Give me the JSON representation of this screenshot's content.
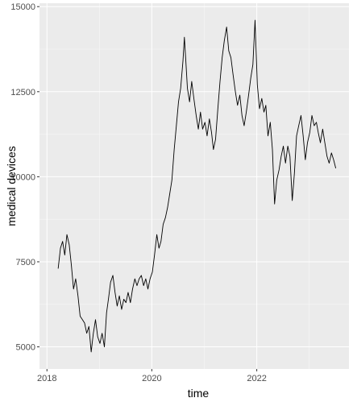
{
  "colors": {
    "panel_background": "#ebebeb",
    "grid_major": "#ffffff",
    "line": "#000000",
    "tick_text": "#4d4d4d",
    "tick_mark": "#333333"
  },
  "chart_data": {
    "type": "line",
    "title": "",
    "xlabel": "time",
    "ylabel": "medical devices",
    "xlim": [
      "2017-11-10",
      "2023-10-05"
    ],
    "ylim": [
      4350,
      15100
    ],
    "x_ticks": [
      {
        "value": "2018-01-01",
        "label": "2018"
      },
      {
        "value": "2020-01-01",
        "label": "2020"
      },
      {
        "value": "2022-01-01",
        "label": "2022"
      }
    ],
    "y_ticks": [
      {
        "value": 5000,
        "label": "5000"
      },
      {
        "value": 7500,
        "label": "7500"
      },
      {
        "value": 10000,
        "label": "10000"
      },
      {
        "value": 12500,
        "label": "12500"
      },
      {
        "value": 15000,
        "label": "15000"
      }
    ],
    "grid": true,
    "legend": "none",
    "series": [
      {
        "points": [
          [
            "2018-03-20",
            7300
          ],
          [
            "2018-04-05",
            7900
          ],
          [
            "2018-04-20",
            8100
          ],
          [
            "2018-05-05",
            7700
          ],
          [
            "2018-05-20",
            8300
          ],
          [
            "2018-06-05",
            8000
          ],
          [
            "2018-06-20",
            7400
          ],
          [
            "2018-07-05",
            6700
          ],
          [
            "2018-07-20",
            7000
          ],
          [
            "2018-08-05",
            6500
          ],
          [
            "2018-08-20",
            5900
          ],
          [
            "2018-09-05",
            5800
          ],
          [
            "2018-09-20",
            5700
          ],
          [
            "2018-10-05",
            5400
          ],
          [
            "2018-10-20",
            5600
          ],
          [
            "2018-11-05",
            4850
          ],
          [
            "2018-11-20",
            5400
          ],
          [
            "2018-12-05",
            5800
          ],
          [
            "2018-12-20",
            5300
          ],
          [
            "2019-01-05",
            5100
          ],
          [
            "2019-01-20",
            5400
          ],
          [
            "2019-02-05",
            5000
          ],
          [
            "2019-02-20",
            6000
          ],
          [
            "2019-03-05",
            6400
          ],
          [
            "2019-03-20",
            6900
          ],
          [
            "2019-04-05",
            7100
          ],
          [
            "2019-04-20",
            6600
          ],
          [
            "2019-05-05",
            6200
          ],
          [
            "2019-05-20",
            6500
          ],
          [
            "2019-06-05",
            6100
          ],
          [
            "2019-06-20",
            6400
          ],
          [
            "2019-07-05",
            6300
          ],
          [
            "2019-07-20",
            6600
          ],
          [
            "2019-08-05",
            6300
          ],
          [
            "2019-08-20",
            6700
          ],
          [
            "2019-09-05",
            7000
          ],
          [
            "2019-09-20",
            6800
          ],
          [
            "2019-10-05",
            7000
          ],
          [
            "2019-10-20",
            7100
          ],
          [
            "2019-11-05",
            6800
          ],
          [
            "2019-11-20",
            7000
          ],
          [
            "2019-12-05",
            6700
          ],
          [
            "2019-12-20",
            7000
          ],
          [
            "2020-01-05",
            7200
          ],
          [
            "2020-01-20",
            7700
          ],
          [
            "2020-02-05",
            8300
          ],
          [
            "2020-02-20",
            7900
          ],
          [
            "2020-03-05",
            8100
          ],
          [
            "2020-03-20",
            8600
          ],
          [
            "2020-04-05",
            8800
          ],
          [
            "2020-04-20",
            9100
          ],
          [
            "2020-05-05",
            9500
          ],
          [
            "2020-05-20",
            9900
          ],
          [
            "2020-06-05",
            10800
          ],
          [
            "2020-06-20",
            11500
          ],
          [
            "2020-07-05",
            12200
          ],
          [
            "2020-07-20",
            12600
          ],
          [
            "2020-08-05",
            13400
          ],
          [
            "2020-08-15",
            14100
          ],
          [
            "2020-08-25",
            13400
          ],
          [
            "2020-09-05",
            12600
          ],
          [
            "2020-09-20",
            12200
          ],
          [
            "2020-10-05",
            12800
          ],
          [
            "2020-10-20",
            12300
          ],
          [
            "2020-11-05",
            11800
          ],
          [
            "2020-11-20",
            11400
          ],
          [
            "2020-12-05",
            11900
          ],
          [
            "2020-12-20",
            11400
          ],
          [
            "2021-01-05",
            11600
          ],
          [
            "2021-01-20",
            11200
          ],
          [
            "2021-02-05",
            11700
          ],
          [
            "2021-02-20",
            11300
          ],
          [
            "2021-03-05",
            10800
          ],
          [
            "2021-03-20",
            11100
          ],
          [
            "2021-04-05",
            12000
          ],
          [
            "2021-04-20",
            12800
          ],
          [
            "2021-05-05",
            13500
          ],
          [
            "2021-05-20",
            14000
          ],
          [
            "2021-06-05",
            14400
          ],
          [
            "2021-06-20",
            13700
          ],
          [
            "2021-07-05",
            13500
          ],
          [
            "2021-07-20",
            13000
          ],
          [
            "2021-08-05",
            12500
          ],
          [
            "2021-08-20",
            12100
          ],
          [
            "2021-09-05",
            12400
          ],
          [
            "2021-09-20",
            11800
          ],
          [
            "2021-10-05",
            11500
          ],
          [
            "2021-10-20",
            11900
          ],
          [
            "2021-11-05",
            12400
          ],
          [
            "2021-11-20",
            12900
          ],
          [
            "2021-12-05",
            13300
          ],
          [
            "2021-12-20",
            14600
          ],
          [
            "2022-01-05",
            12700
          ],
          [
            "2022-01-20",
            12000
          ],
          [
            "2022-02-05",
            12300
          ],
          [
            "2022-02-20",
            11900
          ],
          [
            "2022-03-05",
            12100
          ],
          [
            "2022-03-20",
            11200
          ],
          [
            "2022-04-05",
            11600
          ],
          [
            "2022-04-20",
            10800
          ],
          [
            "2022-05-05",
            9200
          ],
          [
            "2022-05-20",
            9900
          ],
          [
            "2022-06-05",
            10200
          ],
          [
            "2022-06-20",
            10600
          ],
          [
            "2022-07-05",
            10900
          ],
          [
            "2022-07-20",
            10400
          ],
          [
            "2022-08-05",
            10900
          ],
          [
            "2022-08-20",
            10600
          ],
          [
            "2022-09-05",
            9300
          ],
          [
            "2022-09-20",
            10100
          ],
          [
            "2022-10-05",
            11200
          ],
          [
            "2022-10-20",
            11500
          ],
          [
            "2022-11-05",
            11800
          ],
          [
            "2022-11-20",
            11200
          ],
          [
            "2022-12-05",
            10500
          ],
          [
            "2022-12-20",
            11000
          ],
          [
            "2023-01-05",
            11300
          ],
          [
            "2023-01-20",
            11800
          ],
          [
            "2023-02-05",
            11500
          ],
          [
            "2023-02-20",
            11600
          ],
          [
            "2023-03-05",
            11300
          ],
          [
            "2023-03-20",
            11000
          ],
          [
            "2023-04-05",
            11400
          ],
          [
            "2023-04-20",
            11000
          ],
          [
            "2023-05-05",
            10600
          ],
          [
            "2023-05-20",
            10400
          ],
          [
            "2023-06-05",
            10700
          ],
          [
            "2023-06-20",
            10500
          ],
          [
            "2023-07-05",
            10250
          ]
        ]
      }
    ]
  }
}
